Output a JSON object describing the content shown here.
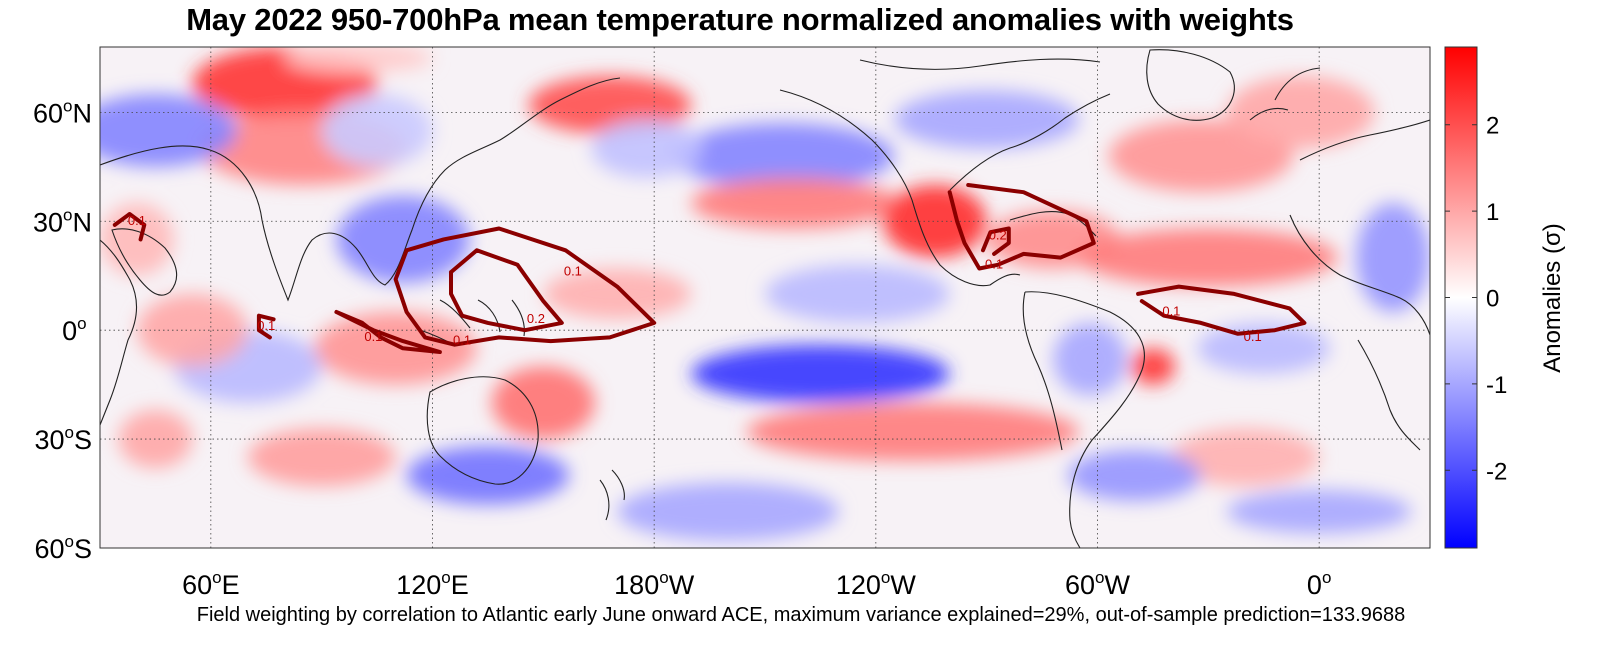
{
  "chart_data": {
    "type": "heatmap",
    "title": "May 2022 950-700hPa mean temperature normalized anomalies with weights",
    "caption": "Field weighting by correlation to Atlantic early June onward ACE, maximum variance explained=29%, out-of-sample prediction=133.9688",
    "colorbar": {
      "label": "Anomalies (σ)",
      "range": [
        -2.9,
        2.9
      ],
      "ticks": [
        -2,
        -1,
        0,
        1,
        2
      ],
      "tick_labels": [
        "-2",
        "-1",
        "0",
        "1",
        "2"
      ],
      "colors": {
        "low": "#0000ff",
        "mid": "#ffffff",
        "high": "#ff0000"
      }
    },
    "xaxis": {
      "lon_range": [
        30,
        390
      ],
      "ticks": [
        {
          "lon": 60,
          "num": "60",
          "hemi": "E"
        },
        {
          "lon": 120,
          "num": "120",
          "hemi": "E"
        },
        {
          "lon": 180,
          "num": "180",
          "hemi": "W"
        },
        {
          "lon": 240,
          "num": "120",
          "hemi": "W"
        },
        {
          "lon": 300,
          "num": "60",
          "hemi": "W"
        },
        {
          "lon": 360,
          "num": "0",
          "hemi": ""
        }
      ]
    },
    "yaxis": {
      "lat_range": [
        -60,
        78
      ],
      "ticks": [
        {
          "lat": 60,
          "num": "60",
          "hemi": "N"
        },
        {
          "lat": 30,
          "num": "30",
          "hemi": "N"
        },
        {
          "lat": 0,
          "num": "0",
          "hemi": ""
        },
        {
          "lat": -30,
          "num": "30",
          "hemi": "S"
        },
        {
          "lat": -60,
          "num": "60",
          "hemi": "S"
        }
      ]
    },
    "anomaly_features": [
      {
        "lon": 80,
        "lat": 68,
        "val": 2.3,
        "rx": 25,
        "ry": 10
      },
      {
        "lon": 85,
        "lat": 50,
        "val": 1.4,
        "rx": 28,
        "ry": 10
      },
      {
        "lon": 168,
        "lat": 62,
        "val": 2.0,
        "rx": 22,
        "ry": 8
      },
      {
        "lon": 45,
        "lat": 55,
        "val": -1.4,
        "rx": 22,
        "ry": 10
      },
      {
        "lon": 112,
        "lat": 25,
        "val": -1.4,
        "rx": 18,
        "ry": 12
      },
      {
        "lon": 105,
        "lat": 55,
        "val": -0.6,
        "rx": 15,
        "ry": 10
      },
      {
        "lon": 215,
        "lat": 48,
        "val": -1.4,
        "rx": 30,
        "ry": 9
      },
      {
        "lon": 270,
        "lat": 58,
        "val": -1.0,
        "rx": 25,
        "ry": 8
      },
      {
        "lon": 178,
        "lat": 50,
        "val": -0.7,
        "rx": 15,
        "ry": 8
      },
      {
        "lon": 218,
        "lat": 35,
        "val": 1.5,
        "rx": 28,
        "ry": 7
      },
      {
        "lon": 256,
        "lat": 30,
        "val": 2.4,
        "rx": 14,
        "ry": 10
      },
      {
        "lon": 288,
        "lat": 25,
        "val": 1.3,
        "rx": 18,
        "ry": 8
      },
      {
        "lon": 330,
        "lat": 20,
        "val": 1.5,
        "rx": 35,
        "ry": 8
      },
      {
        "lon": 328,
        "lat": 48,
        "val": 1.2,
        "rx": 25,
        "ry": 10
      },
      {
        "lon": 355,
        "lat": 60,
        "val": 1.0,
        "rx": 20,
        "ry": 10
      },
      {
        "lon": 235,
        "lat": 10,
        "val": -0.8,
        "rx": 25,
        "ry": 8
      },
      {
        "lon": 225,
        "lat": -12,
        "val": -2.3,
        "rx": 35,
        "ry": 8
      },
      {
        "lon": 250,
        "lat": -28,
        "val": 1.5,
        "rx": 45,
        "ry": 8
      },
      {
        "lon": 150,
        "lat": -20,
        "val": 1.6,
        "rx": 14,
        "ry": 10
      },
      {
        "lon": 110,
        "lat": -5,
        "val": 1.2,
        "rx": 22,
        "ry": 10
      },
      {
        "lon": 135,
        "lat": -40,
        "val": -1.6,
        "rx": 22,
        "ry": 8
      },
      {
        "lon": 70,
        "lat": -10,
        "val": -0.8,
        "rx": 20,
        "ry": 10
      },
      {
        "lon": 55,
        "lat": 0,
        "val": 1.0,
        "rx": 15,
        "ry": 10
      },
      {
        "lon": 315,
        "lat": -10,
        "val": 2.3,
        "rx": 6,
        "ry": 5
      },
      {
        "lon": 298,
        "lat": -8,
        "val": -1.0,
        "rx": 10,
        "ry": 10
      },
      {
        "lon": 345,
        "lat": -5,
        "val": -0.8,
        "rx": 18,
        "ry": 7
      },
      {
        "lon": 340,
        "lat": -35,
        "val": 0.9,
        "rx": 20,
        "ry": 8
      },
      {
        "lon": 380,
        "lat": 20,
        "val": -1.2,
        "rx": 10,
        "ry": 15
      },
      {
        "lon": 310,
        "lat": -40,
        "val": -1.2,
        "rx": 18,
        "ry": 7
      },
      {
        "lon": 200,
        "lat": -50,
        "val": -1.0,
        "rx": 30,
        "ry": 8
      },
      {
        "lon": 90,
        "lat": -35,
        "val": 1.1,
        "rx": 20,
        "ry": 8
      },
      {
        "lon": 45,
        "lat": -30,
        "val": 1.0,
        "rx": 10,
        "ry": 8
      },
      {
        "lon": 360,
        "lat": -50,
        "val": -1.0,
        "rx": 25,
        "ry": 6
      },
      {
        "lon": 170,
        "lat": 10,
        "val": 0.9,
        "rx": 20,
        "ry": 7
      },
      {
        "lon": 40,
        "lat": 25,
        "val": 0.8,
        "rx": 10,
        "ry": 10
      },
      {
        "lon": 100,
        "lat": 75,
        "val": 0.6,
        "rx": 20,
        "ry": 4
      }
    ],
    "weight_contours": [
      {
        "level": 0.1,
        "points": [
          [
            113,
            22
          ],
          [
            123,
            25
          ],
          [
            138,
            28
          ],
          [
            156,
            22
          ],
          [
            170,
            12
          ],
          [
            180,
            2
          ],
          [
            168,
            -2
          ],
          [
            152,
            -3
          ],
          [
            138,
            -2
          ],
          [
            126,
            -4
          ],
          [
            118,
            -2
          ],
          [
            113,
            5
          ],
          [
            110,
            14
          ],
          [
            113,
            22
          ]
        ],
        "labels": [
          {
            "text": "0.1",
            "lon": 158,
            "lat": 15
          },
          {
            "text": "0.1",
            "lon": 128,
            "lat": -4
          }
        ]
      },
      {
        "level": 0.2,
        "points": [
          [
            125,
            16
          ],
          [
            132,
            22
          ],
          [
            143,
            18
          ],
          [
            150,
            8
          ],
          [
            155,
            2
          ],
          [
            145,
            0
          ],
          [
            135,
            2
          ],
          [
            128,
            4
          ],
          [
            125,
            10
          ],
          [
            125,
            16
          ]
        ],
        "labels": [
          {
            "text": "0.2",
            "lon": 148,
            "lat": 2
          }
        ]
      },
      {
        "level": 0.1,
        "points": [
          [
            94,
            5
          ],
          [
            101,
            2
          ],
          [
            106,
            -2
          ],
          [
            112,
            -5
          ],
          [
            122,
            -6
          ],
          [
            112,
            -3
          ],
          [
            104,
            0
          ],
          [
            98,
            3
          ],
          [
            94,
            5
          ]
        ],
        "labels": [
          {
            "text": "0.1",
            "lon": 104,
            "lat": -3
          }
        ]
      },
      {
        "level": 0.1,
        "points": [
          [
            77,
            3
          ],
          [
            73,
            4
          ],
          [
            73,
            0
          ],
          [
            76,
            -2
          ]
        ],
        "labels": [
          {
            "text": "0.1",
            "lon": 75,
            "lat": 0
          }
        ]
      },
      {
        "level": 0.1,
        "points": [
          [
            34,
            29
          ],
          [
            38,
            32
          ],
          [
            42,
            29
          ],
          [
            41,
            25
          ]
        ],
        "labels": [
          {
            "text": "0.1",
            "lon": 40,
            "lat": 29
          }
        ]
      },
      {
        "level": 0.1,
        "points": [
          [
            265,
            40
          ],
          [
            280,
            38
          ],
          [
            297,
            30
          ],
          [
            299,
            24
          ],
          [
            290,
            20
          ],
          [
            280,
            21
          ],
          [
            273,
            18
          ],
          [
            268,
            17
          ],
          [
            264,
            24
          ],
          [
            262,
            30
          ],
          [
            260,
            38
          ]
        ],
        "labels": [
          {
            "text": "0.1",
            "lon": 272,
            "lat": 17
          }
        ]
      },
      {
        "level": 0.2,
        "points": [
          [
            269,
            22
          ],
          [
            271,
            27
          ],
          [
            276,
            28
          ],
          [
            276,
            24
          ],
          [
            272,
            21
          ]
        ],
        "labels": [
          {
            "text": "0.2",
            "lon": 273,
            "lat": 25
          }
        ]
      },
      {
        "level": 0.1,
        "points": [
          [
            311,
            10
          ],
          [
            322,
            12
          ],
          [
            337,
            10
          ],
          [
            352,
            6
          ],
          [
            356,
            2
          ],
          [
            348,
            0
          ],
          [
            338,
            -1
          ],
          [
            328,
            2
          ],
          [
            318,
            4
          ],
          [
            312,
            8
          ]
        ],
        "labels": [
          {
            "text": "0.1",
            "lon": 320,
            "lat": 4
          },
          {
            "text": "0.1",
            "lon": 342,
            "lat": -3
          }
        ]
      }
    ]
  }
}
